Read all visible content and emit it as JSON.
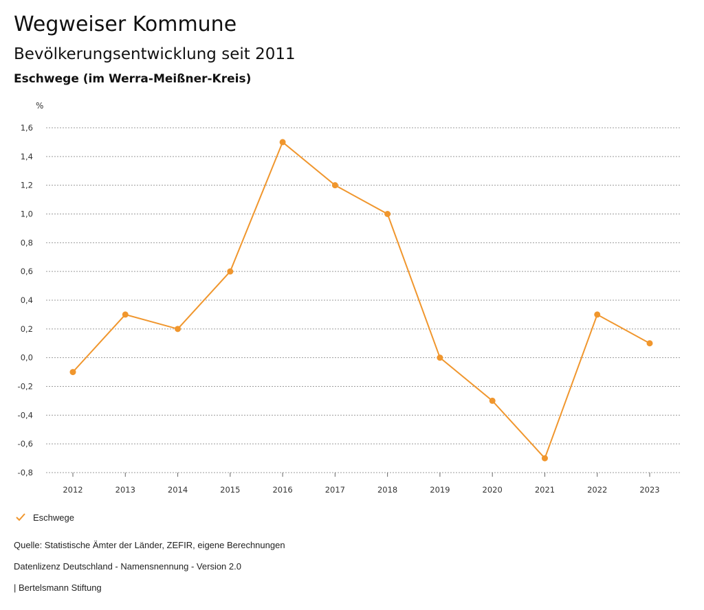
{
  "header": {
    "title": "Wegweiser Kommune",
    "subtitle": "Bevölkerungsentwicklung seit 2011",
    "region": "Eschwege (im Werra-Meißner-Kreis)"
  },
  "chart_data": {
    "type": "line",
    "title": "Bevölkerungsentwicklung seit 2011",
    "ylabel": "%",
    "xlabel": "",
    "categories": [
      "2012",
      "2013",
      "2014",
      "2015",
      "2016",
      "2017",
      "2018",
      "2019",
      "2020",
      "2021",
      "2022",
      "2023"
    ],
    "series": [
      {
        "name": "Eschwege",
        "color": "#f0962d",
        "values": [
          -0.1,
          0.3,
          0.2,
          0.6,
          1.5,
          1.2,
          1.0,
          0.0,
          -0.3,
          -0.7,
          0.3,
          0.1
        ]
      }
    ],
    "ylim": [
      -0.8,
      1.6
    ],
    "yticks": [
      1.6,
      1.4,
      1.2,
      1.0,
      0.8,
      0.6,
      0.4,
      0.2,
      0.0,
      -0.2,
      -0.4,
      -0.6,
      -0.8
    ],
    "ytick_labels": [
      "1,6",
      "1,4",
      "1,2",
      "1,0",
      "0,8",
      "0,6",
      "0,4",
      "0,2",
      "0,0",
      "-0,2",
      "-0,4",
      "-0,6",
      "-0,8"
    ],
    "grid": true,
    "legend_position": "bottom-left"
  },
  "legend": {
    "label": "Eschwege",
    "icon": "check-icon"
  },
  "footer": {
    "source": "Quelle: Statistische Ämter der Länder, ZEFIR, eigene Berechnungen",
    "license": "Datenlizenz Deutschland - Namensnennung - Version 2.0",
    "publisher": "| Bertelsmann Stiftung"
  }
}
